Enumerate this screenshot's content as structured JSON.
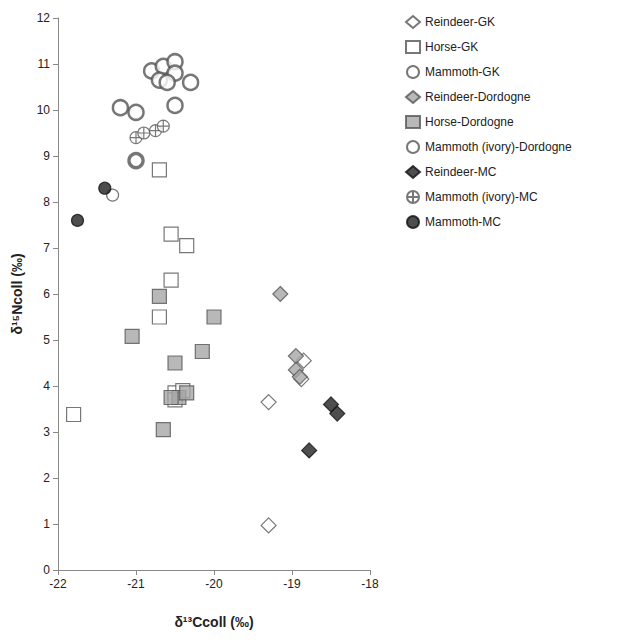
{
  "chart_data": {
    "type": "scatter",
    "x_label": "δ¹³Ccoll (‰)",
    "y_label": "δ¹⁵Ncoll (‰)",
    "xlim": [
      -22,
      -18
    ],
    "xticks": [
      -22,
      -21,
      -20,
      -19,
      -18
    ],
    "ylim": [
      0,
      12
    ],
    "yticks": [
      0,
      1,
      2,
      3,
      4,
      5,
      6,
      7,
      8,
      9,
      10,
      11,
      12
    ],
    "grid": false,
    "legend": "right",
    "series": [
      {
        "name": "Reindeer-GK",
        "marker": "diamond",
        "color": "#ffffff",
        "x": [
          -19.3,
          -19.3,
          -18.85,
          -18.88
        ],
        "values": [
          3.65,
          0.97,
          4.55,
          4.15
        ]
      },
      {
        "name": "Horse-GK",
        "marker": "square",
        "color": "#ffffff",
        "x": [
          -21.8,
          -20.7,
          -20.55,
          -20.35,
          -20.55,
          -20.7,
          -20.5,
          -20.4,
          -20.5
        ],
        "values": [
          3.38,
          8.7,
          7.3,
          7.05,
          6.3,
          5.5,
          3.85,
          3.9,
          3.7
        ]
      },
      {
        "name": "Mammoth-GK",
        "marker": "ring",
        "color": "#ffffff",
        "x": [
          -20.8,
          -20.65,
          -20.5,
          -20.5,
          -20.7,
          -20.6,
          -20.3,
          -21.2,
          -21.0,
          -20.5,
          -21.0
        ],
        "values": [
          10.85,
          10.95,
          11.05,
          10.8,
          10.65,
          10.6,
          10.6,
          10.05,
          9.95,
          10.1,
          8.9
        ]
      },
      {
        "name": "Reindeer-Dordogne",
        "marker": "diamond",
        "color": "#a6a6a6",
        "x": [
          -19.15,
          -18.95,
          -18.95,
          -18.9
        ],
        "values": [
          6.0,
          4.65,
          4.35,
          4.2
        ]
      },
      {
        "name": "Horse-Dordogne",
        "marker": "square",
        "color": "#a6a6a6",
        "x": [
          -20.7,
          -21.05,
          -20.5,
          -20.0,
          -20.15,
          -20.65,
          -20.45,
          -20.35,
          -20.55
        ],
        "values": [
          5.95,
          5.08,
          4.5,
          5.5,
          4.75,
          3.05,
          3.75,
          3.85,
          3.75
        ]
      },
      {
        "name": "Mammoth (ivory)-Dordogne",
        "marker": "circle",
        "color": "#ffffff",
        "x": [
          -21.3,
          -21.0
        ],
        "values": [
          8.15,
          8.9
        ]
      },
      {
        "name": "Reindeer-MC",
        "marker": "diamond",
        "color": "#222222",
        "x": [
          -18.5,
          -18.42,
          -18.78
        ],
        "values": [
          3.6,
          3.4,
          2.6
        ]
      },
      {
        "name": "Mammoth (ivory)-MC",
        "marker": "crossed_circle",
        "color": "#ffffff",
        "x": [
          -21.0,
          -20.9,
          -20.75,
          -20.65
        ],
        "values": [
          9.4,
          9.5,
          9.55,
          9.65
        ]
      },
      {
        "name": "Mammoth-MC",
        "marker": "circle",
        "color": "#222222",
        "x": [
          -21.4,
          -21.75
        ],
        "values": [
          8.3,
          7.6
        ]
      }
    ]
  }
}
